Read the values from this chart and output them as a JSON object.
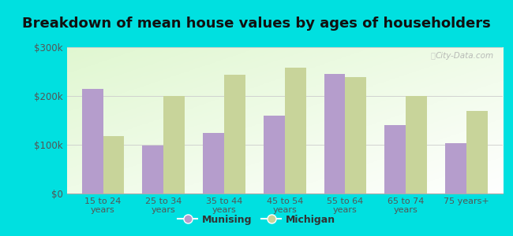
{
  "title": "Breakdown of mean house values by ages of householders",
  "categories": [
    "15 to 24\nyears",
    "25 to 34\nyears",
    "35 to 44\nyears",
    "45 to 54\nyears",
    "55 to 64\nyears",
    "65 to 74\nyears",
    "75 years+"
  ],
  "munising_values": [
    215000,
    98000,
    125000,
    160000,
    245000,
    140000,
    103000
  ],
  "michigan_values": [
    118000,
    200000,
    243000,
    258000,
    238000,
    200000,
    170000
  ],
  "munising_color": "#b59dcc",
  "michigan_color": "#c8d49a",
  "background_color": "#00e0e0",
  "ylim": [
    0,
    300000
  ],
  "yticks": [
    0,
    100000,
    200000,
    300000
  ],
  "ytick_labels": [
    "$0",
    "$100k",
    "$200k",
    "$300k"
  ],
  "legend_munising": "Munising",
  "legend_michigan": "Michigan",
  "title_fontsize": 13,
  "bar_width": 0.35,
  "watermark": "City-Data.com"
}
